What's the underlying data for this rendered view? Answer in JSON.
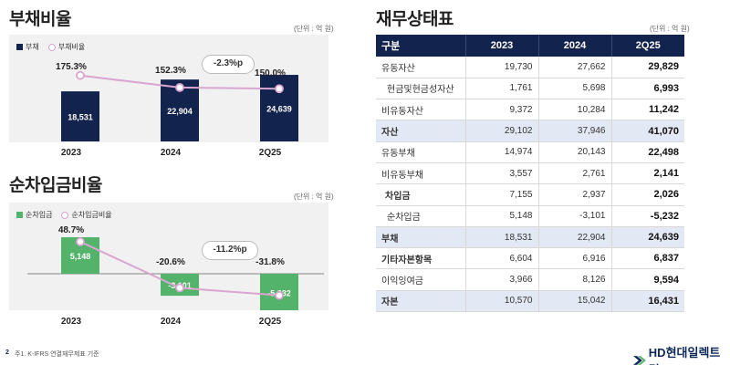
{
  "colors": {
    "navy": "#12234d",
    "green": "#53b36a",
    "pink": "#d9a6d0",
    "panel": "#f1f1f1",
    "highlight": "#e3e9f4"
  },
  "debt": {
    "title": "부채비율",
    "unit": "(단위 : 억 원)",
    "legend_bar": "부채",
    "legend_line": "부채비율",
    "change_pill": "-2.3%p"
  },
  "net": {
    "title": "순차입금비율",
    "unit": "(단위 : 억 원)",
    "legend_bar": "순차입금",
    "legend_line": "순차입금비율",
    "change_pill": "-11.2%p"
  },
  "table": {
    "title": "재무상태표",
    "unit": "(단위 : 억 원)",
    "headers": [
      "구분",
      "2023",
      "2024",
      "2Q25"
    ],
    "rows": [
      {
        "label": "유동자산",
        "v": [
          "19,730",
          "27,662",
          "29,829"
        ]
      },
      {
        "label": "현금및현금성자산",
        "v": [
          "1,761",
          "5,698",
          "6,993"
        ]
      },
      {
        "label": "비유동자산",
        "v": [
          "9,372",
          "10,284",
          "11,242"
        ]
      },
      {
        "label": "자산",
        "v": [
          "29,102",
          "37,946",
          "41,070"
        ]
      },
      {
        "label": "유동부채",
        "v": [
          "14,974",
          "20,143",
          "22,498"
        ]
      },
      {
        "label": "비유동부채",
        "v": [
          "3,557",
          "2,761",
          "2,141"
        ]
      },
      {
        "label": "차입금",
        "v": [
          "7,155",
          "2,937",
          "2,026"
        ]
      },
      {
        "label": "순차입금",
        "v": [
          "5,148",
          "-3,101",
          "-5,232"
        ]
      },
      {
        "label": "부채",
        "v": [
          "18,531",
          "22,904",
          "24,639"
        ]
      },
      {
        "label": "기타자본항목",
        "v": [
          "6,604",
          "6,916",
          "6,837"
        ]
      },
      {
        "label": "이익잉여금",
        "v": [
          "3,966",
          "8,126",
          "9,594"
        ]
      },
      {
        "label": "자본",
        "v": [
          "10,570",
          "15,042",
          "16,431"
        ]
      }
    ]
  },
  "footer": {
    "page": "2",
    "note": "주1. K-IFRS 연결재무제표 기준",
    "logo": "HD현대일렉트릭"
  },
  "chart_data": [
    {
      "type": "bar",
      "title": "부채비율",
      "categories": [
        "2023",
        "2024",
        "2Q25"
      ],
      "series": [
        {
          "name": "부채",
          "values": [
            18531,
            22904,
            24639
          ],
          "labels": [
            "18,531",
            "22,904",
            "24,639"
          ]
        },
        {
          "name": "부채비율",
          "type": "line",
          "values": [
            175.3,
            152.3,
            150.0
          ],
          "labels": [
            "175.3%",
            "152.3%",
            "150.0%"
          ]
        }
      ],
      "ylim": [
        0,
        26000
      ]
    },
    {
      "type": "bar",
      "title": "순차입금비율",
      "categories": [
        "2023",
        "2024",
        "2Q25"
      ],
      "series": [
        {
          "name": "순차입금",
          "values": [
            5148,
            -3101,
            -5232
          ],
          "labels": [
            "5,148",
            "-3,101",
            "-5,232"
          ]
        },
        {
          "name": "순차입금비율",
          "type": "line",
          "values": [
            48.7,
            -20.6,
            -31.8
          ],
          "labels": [
            "48.7%",
            "-20.6%",
            "-31.8%"
          ]
        }
      ],
      "ylim": [
        -6000,
        6000
      ]
    }
  ]
}
